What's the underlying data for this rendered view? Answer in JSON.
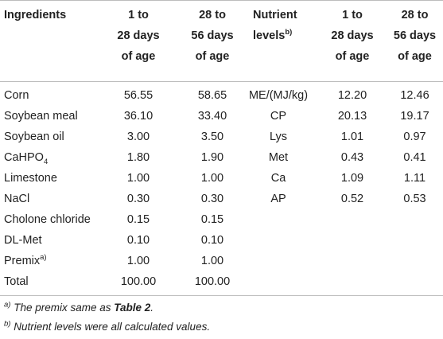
{
  "header": {
    "ingredients": "Ingredients",
    "col_1_28": [
      "1 to",
      "28 days",
      "of age"
    ],
    "col_28_56": [
      "28 to",
      "56 days",
      "of age"
    ],
    "nutrient_levels": "Nutrient",
    "nutrient_levels_2": "levels",
    "nutrient_levels_sup": "b)",
    "col_n_1_28": [
      "1 to",
      "28 days",
      "of age"
    ],
    "col_n_28_56": [
      "28 to",
      "56 days",
      "of age"
    ]
  },
  "ingredients": [
    {
      "name": "Corn",
      "sub": "",
      "sup": "",
      "v1": "56.55",
      "v2": "58.65"
    },
    {
      "name": "Soybean meal",
      "sub": "",
      "sup": "",
      "v1": "36.10",
      "v2": "33.40"
    },
    {
      "name": "Soybean oil",
      "sub": "",
      "sup": "",
      "v1": "3.00",
      "v2": "3.50"
    },
    {
      "name": "CaHPO",
      "sub": "4",
      "sup": "",
      "v1": "1.80",
      "v2": "1.90"
    },
    {
      "name": "Limestone",
      "sub": "",
      "sup": "",
      "v1": "1.00",
      "v2": "1.00"
    },
    {
      "name": "NaCl",
      "sub": "",
      "sup": "",
      "v1": "0.30",
      "v2": "0.30"
    },
    {
      "name": "Cholone chloride",
      "sub": "",
      "sup": "",
      "v1": "0.15",
      "v2": "0.15"
    },
    {
      "name": "DL-Met",
      "sub": "",
      "sup": "",
      "v1": "0.10",
      "v2": "0.10"
    },
    {
      "name": "Premix",
      "sub": "",
      "sup": "a)",
      "v1": "1.00",
      "v2": "1.00"
    },
    {
      "name": "Total",
      "sub": "",
      "sup": "",
      "v1": "100.00",
      "v2": "100.00"
    }
  ],
  "nutrients": [
    {
      "name": "ME/(MJ/kg)",
      "v1": "12.20",
      "v2": "12.46"
    },
    {
      "name": "CP",
      "v1": "20.13",
      "v2": "19.17"
    },
    {
      "name": "Lys",
      "v1": "1.01",
      "v2": "0.97"
    },
    {
      "name": "Met",
      "v1": "0.43",
      "v2": "0.41"
    },
    {
      "name": "Ca",
      "v1": "1.09",
      "v2": "1.11"
    },
    {
      "name": "AP",
      "v1": "0.52",
      "v2": "0.53"
    }
  ],
  "footnotes": {
    "a_mark": "a)",
    "a_text": " The premix same as ",
    "a_ref": "Table 2",
    "a_end": ".",
    "b_mark": "b)",
    "b_text": " Nutrient levels were all calculated values."
  }
}
